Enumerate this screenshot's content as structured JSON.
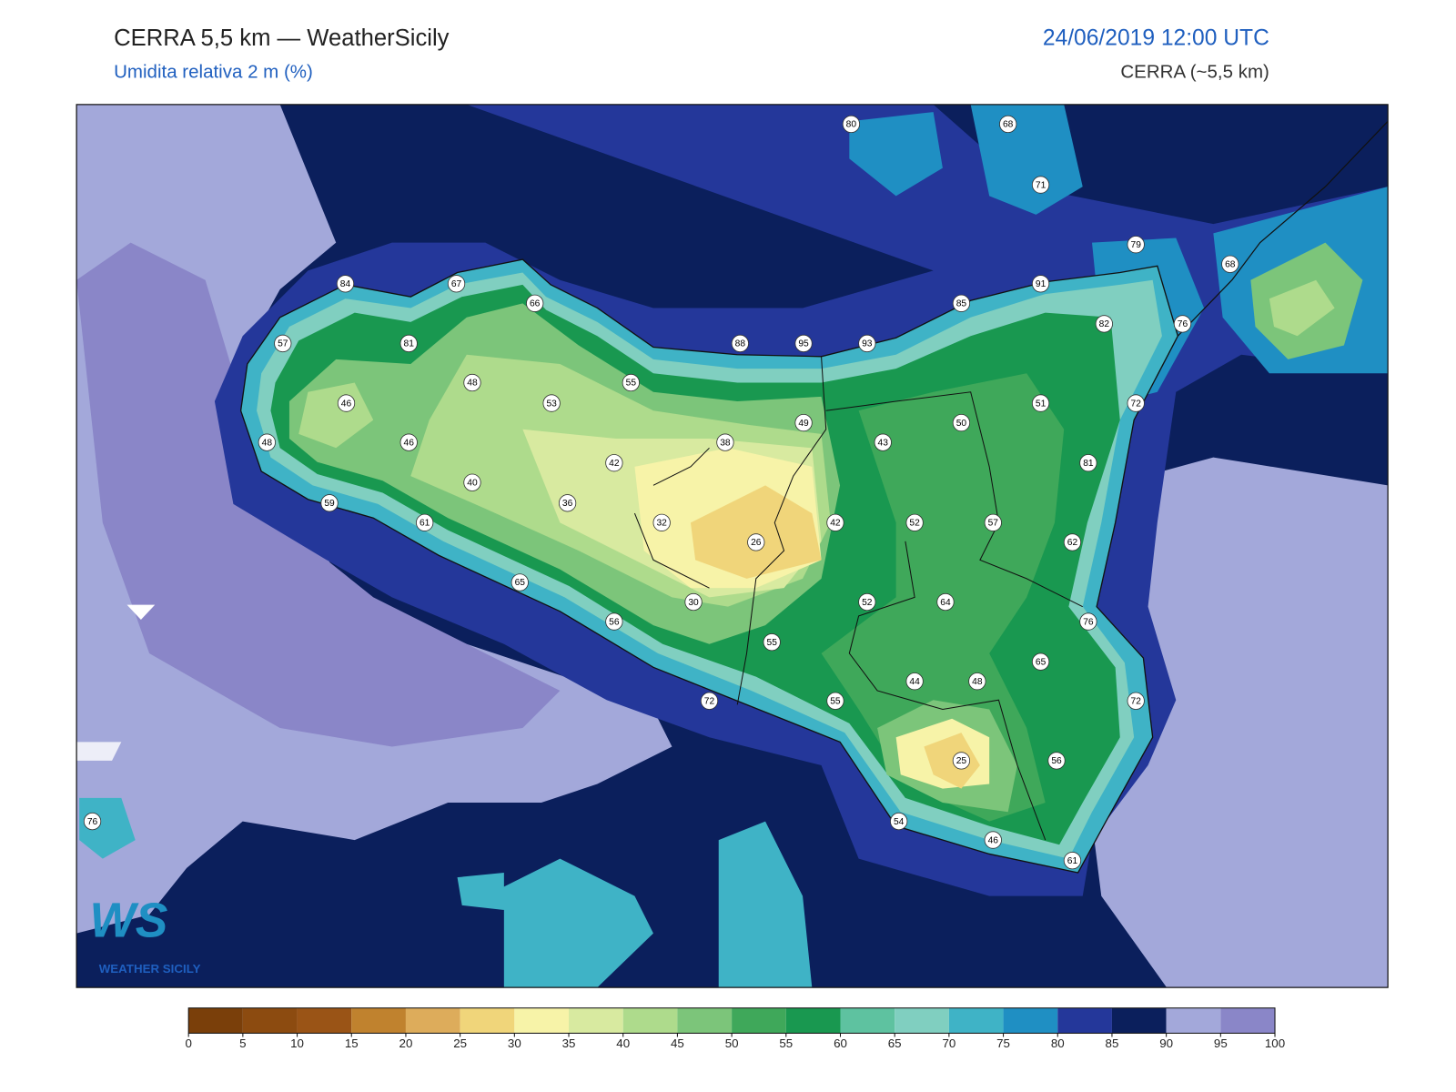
{
  "header": {
    "title": "CERRA 5,5 km — WeatherSicily",
    "subtitle": "Umidita relativa 2 m (%)",
    "datetime": "24/06/2019 12:00 UTC",
    "model": "CERRA (~5,5 km)"
  },
  "stations": [
    80,
    68,
    71,
    79,
    68,
    91,
    85,
    82,
    76,
    84,
    67,
    66,
    57,
    81,
    88,
    95,
    93,
    48,
    55,
    46,
    53,
    51,
    72,
    49,
    50,
    48,
    46,
    38,
    43,
    42,
    81,
    40,
    59,
    36,
    61,
    32,
    42,
    52,
    57,
    26,
    62,
    65,
    30,
    52,
    64,
    56,
    76,
    55,
    65,
    44,
    48,
    72,
    55,
    72,
    25,
    56,
    54,
    76,
    46,
    61
  ],
  "colorbar": {
    "ticks": [
      0,
      5,
      10,
      15,
      20,
      25,
      30,
      35,
      40,
      45,
      50,
      55,
      60,
      65,
      70,
      75,
      80,
      85,
      90,
      95,
      100
    ],
    "colors": [
      "#7a3f0a",
      "#8c4b10",
      "#9a5416",
      "#c0822e",
      "#ddac5b",
      "#f0d57a",
      "#f7f3a8",
      "#d8eaa0",
      "#aedb8c",
      "#7cc57a",
      "#3fa85a",
      "#199850",
      "#5ec2a0",
      "#80cfc0",
      "#3fb3c6",
      "#1f8fc3",
      "#24379a",
      "#0b1f5c",
      "#a3a8da",
      "#8a86c8"
    ]
  },
  "logo": {
    "mark": "WS",
    "name": "WEATHER SICILY"
  }
}
